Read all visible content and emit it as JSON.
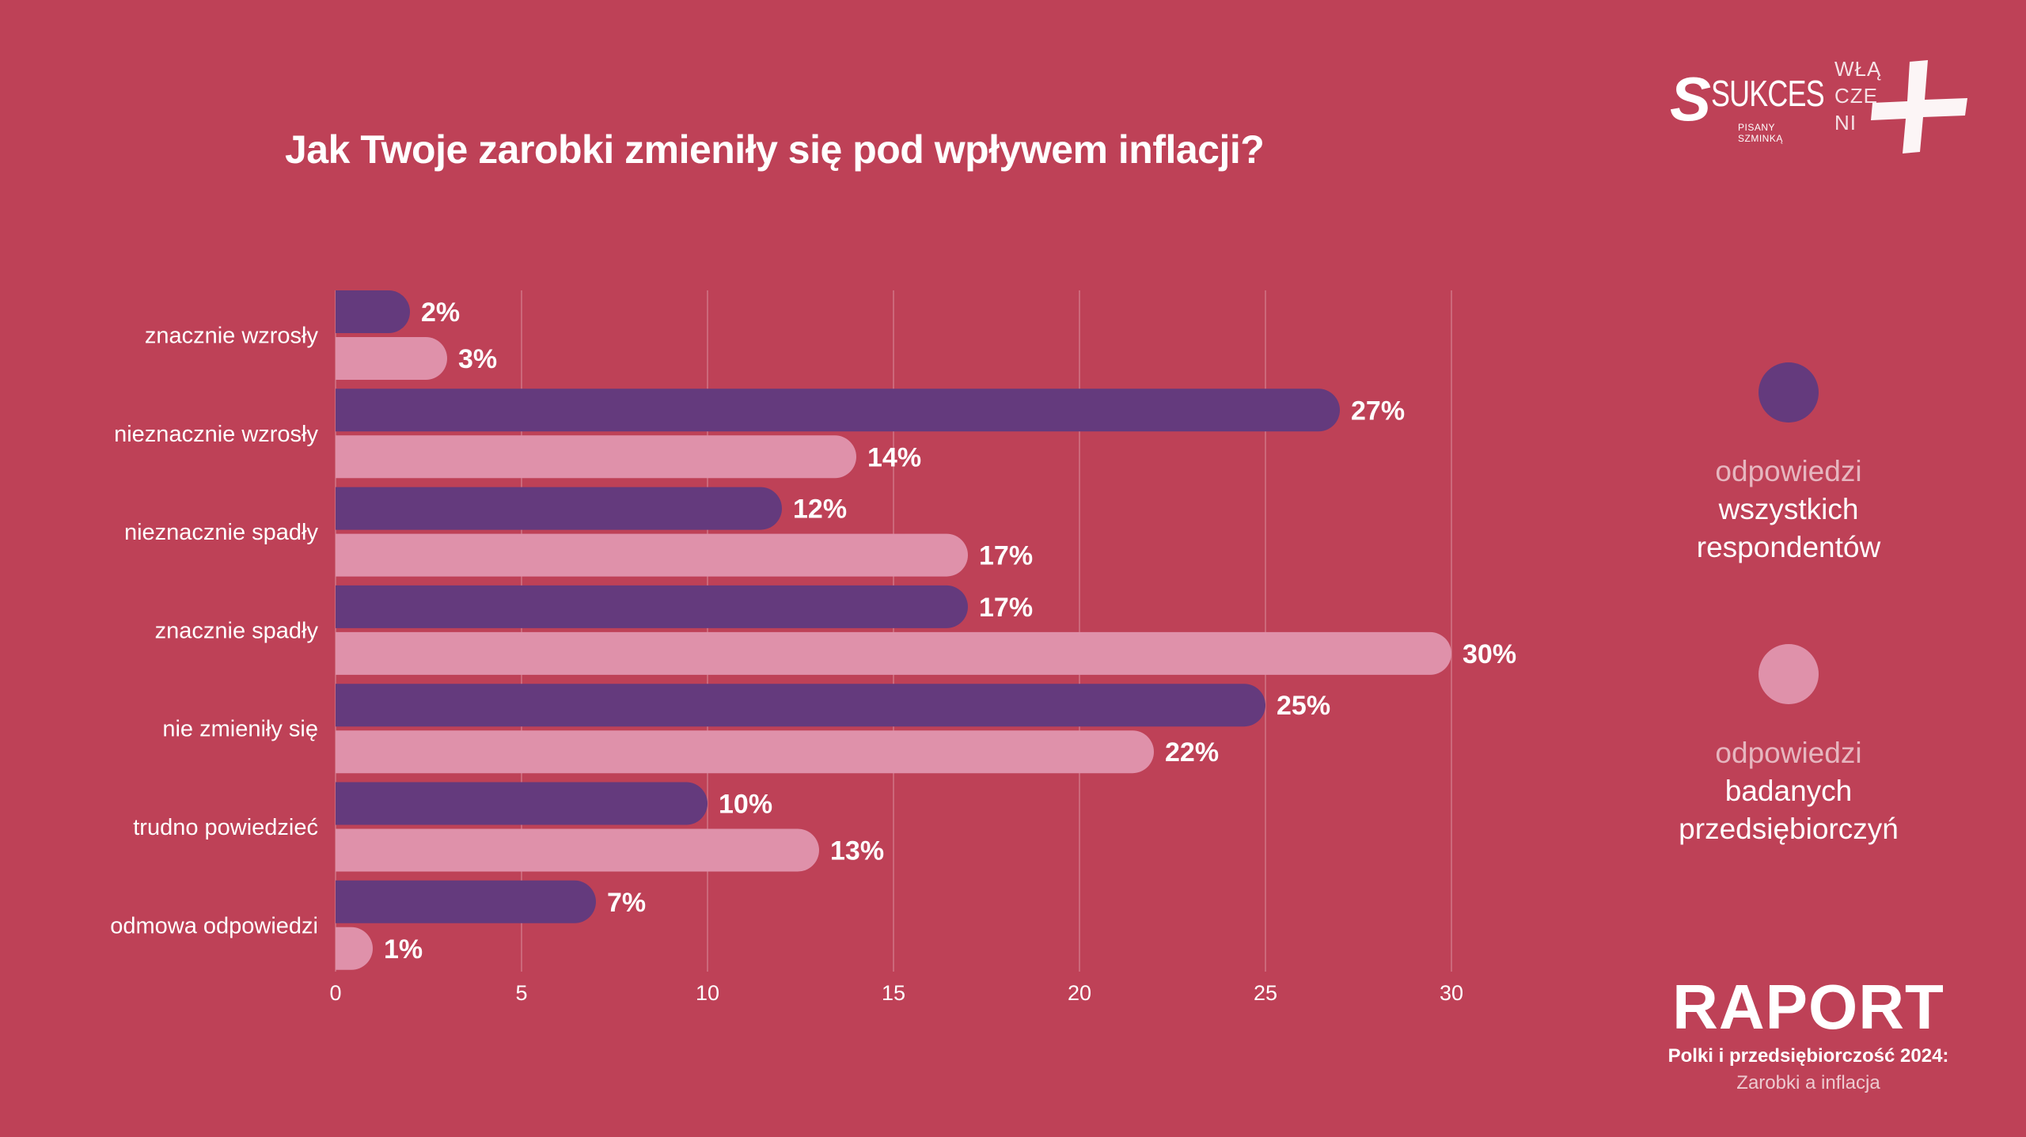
{
  "title": "Jak Twoje zarobki zmieniły się pod wpływem inflacji?",
  "colors": {
    "background": "#be4157",
    "series_all": "#643a7d",
    "series_entrepreneurs": "#df91aa"
  },
  "chart_data": {
    "type": "bar",
    "orientation": "horizontal",
    "categories": [
      "znacznie wzrosły",
      "nieznacznie wzrosły",
      "nieznacznie spadły",
      "znacznie spadły",
      "nie zmieniły się",
      "trudno powiedzieć",
      "odmowa odpowiedzi"
    ],
    "series": [
      {
        "name": "odpowiedzi wszystkich respondentów",
        "color": "#643a7d",
        "values": [
          2,
          27,
          12,
          17,
          25,
          10,
          7
        ]
      },
      {
        "name": "odpowiedzi badanych przedsiębiorczyń",
        "color": "#df91aa",
        "values": [
          3,
          14,
          17,
          30,
          22,
          13,
          1
        ]
      }
    ],
    "value_suffix": "%",
    "xlim": [
      0,
      30
    ],
    "xticks": [
      0,
      5,
      10,
      15,
      20,
      25,
      30
    ],
    "grid": true,
    "legend_position": "right"
  },
  "legend": [
    {
      "line1": "odpowiedzi",
      "line2": "wszystkich",
      "line3": "respondentów",
      "color": "#643a7d"
    },
    {
      "line1": "odpowiedzi",
      "line2": "badanych",
      "line3": "przedsiębiorczyń",
      "color": "#df91aa"
    }
  ],
  "logos": {
    "sukces_mark": "S",
    "sukces_word": "SUKCES",
    "sukces_tag": "PISANY SZMINKĄ",
    "wlaczeni": [
      "WŁĄ",
      "CZE",
      "NI"
    ]
  },
  "report": {
    "heading": "RAPORT",
    "subtitle": "Polki i przedsiębiorczość 2024:",
    "topic": "Zarobki a inflacja"
  }
}
